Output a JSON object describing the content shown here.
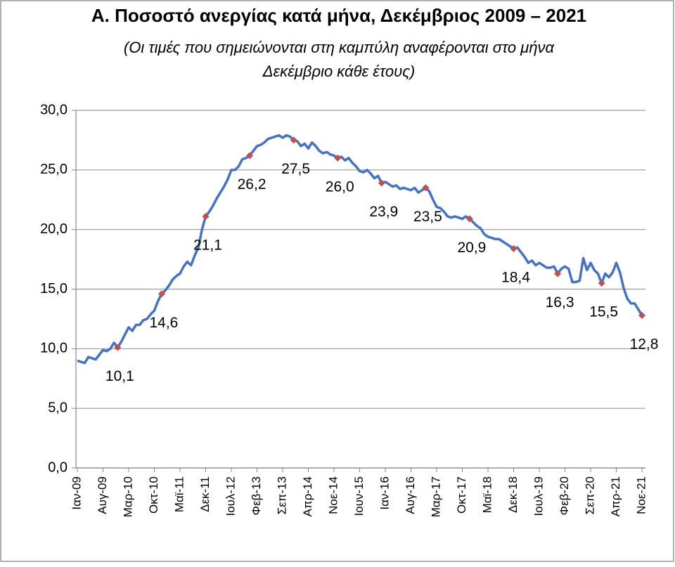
{
  "chart_data": {
    "type": "line",
    "title": "Α. Ποσοστό ανεργίας κατά μήνα, Δεκέμβριος 2009 – 2021",
    "subtitle": [
      "(Οι τιμές που σημειώνονται στη καμπύλη αναφέρονται στο μήνα",
      "Δεκέμβριο κάθε έτους)"
    ],
    "categories": [
      "Ιαν-09",
      null,
      null,
      null,
      null,
      null,
      null,
      "Αυγ-09",
      null,
      null,
      null,
      null,
      null,
      null,
      "Μαρ-10",
      null,
      null,
      null,
      null,
      null,
      null,
      "Οκτ-10",
      null,
      null,
      null,
      null,
      null,
      null,
      "Μαϊ-11",
      null,
      null,
      null,
      null,
      null,
      null,
      "Δεκ-11",
      null,
      null,
      null,
      null,
      null,
      null,
      "Ιουλ-12",
      null,
      null,
      null,
      null,
      null,
      null,
      "Φεβ-13",
      null,
      null,
      null,
      null,
      null,
      null,
      "Σεπ-13",
      null,
      null,
      null,
      null,
      null,
      null,
      "Απρ-14",
      null,
      null,
      null,
      null,
      null,
      null,
      "Νοε-14",
      null,
      null,
      null,
      null,
      null,
      null,
      "Ιουν-15",
      null,
      null,
      null,
      null,
      null,
      null,
      "Ιαν-16",
      null,
      null,
      null,
      null,
      null,
      null,
      "Αυγ-16",
      null,
      null,
      null,
      null,
      null,
      null,
      "Μαρ-17",
      null,
      null,
      null,
      null,
      null,
      null,
      "Οκτ-17",
      null,
      null,
      null,
      null,
      null,
      null,
      "Μαϊ-18",
      null,
      null,
      null,
      null,
      null,
      null,
      "Δεκ-18",
      null,
      null,
      null,
      null,
      null,
      null,
      "Ιουλ-19",
      null,
      null,
      null,
      null,
      null,
      null,
      "Φεβ-20",
      null,
      null,
      null,
      null,
      null,
      null,
      "Σεπ-20",
      null,
      null,
      null,
      null,
      null,
      null,
      "Απρ-21",
      null,
      null,
      null,
      null,
      null,
      null,
      "Νοε-21"
    ],
    "series": [
      {
        "color": "#4472c4",
        "marker_color": "#c0504d",
        "values": [
          9.0,
          8.9,
          8.8,
          9.3,
          9.2,
          9.1,
          9.5,
          9.9,
          9.8,
          10.0,
          10.5,
          10.1,
          10.6,
          11.2,
          11.8,
          11.5,
          12.0,
          12.0,
          12.4,
          12.5,
          12.9,
          13.2,
          14.0,
          14.6,
          14.9,
          15.3,
          15.8,
          16.1,
          16.3,
          16.9,
          17.3,
          17.0,
          17.8,
          18.5,
          20.0,
          21.1,
          21.5,
          22.0,
          22.6,
          23.1,
          23.6,
          24.2,
          25.0,
          25.0,
          25.3,
          25.9,
          26.0,
          26.2,
          26.6,
          27.0,
          27.1,
          27.3,
          27.6,
          27.7,
          27.8,
          27.9,
          27.7,
          27.9,
          27.8,
          27.5,
          27.4,
          27.0,
          27.2,
          26.8,
          27.3,
          27.0,
          26.6,
          26.4,
          26.5,
          26.3,
          26.2,
          26.0,
          26.1,
          25.8,
          26.0,
          25.6,
          25.3,
          24.9,
          24.8,
          25.0,
          24.7,
          24.3,
          24.5,
          23.9,
          24.0,
          23.8,
          23.6,
          23.7,
          23.4,
          23.5,
          23.4,
          23.3,
          23.5,
          23.1,
          23.3,
          23.5,
          23.2,
          22.5,
          21.9,
          21.8,
          21.5,
          21.1,
          21.0,
          21.1,
          21.0,
          20.9,
          21.1,
          20.9,
          20.6,
          20.3,
          20.1,
          19.6,
          19.4,
          19.3,
          19.2,
          19.2,
          19.0,
          18.8,
          18.6,
          18.4,
          18.5,
          18.1,
          17.7,
          17.2,
          17.4,
          17.0,
          17.2,
          17.0,
          16.8,
          16.8,
          16.9,
          16.3,
          16.7,
          16.9,
          16.7,
          15.6,
          15.6,
          15.7,
          17.6,
          16.6,
          17.2,
          16.6,
          16.3,
          15.5,
          16.3,
          16.0,
          16.4,
          17.2,
          16.4,
          15.1,
          14.2,
          13.8,
          13.8,
          13.3,
          12.8
        ],
        "value_labels": [
          null,
          null,
          null,
          null,
          null,
          null,
          null,
          null,
          null,
          null,
          null,
          "10,1",
          null,
          null,
          null,
          null,
          null,
          null,
          null,
          null,
          null,
          null,
          null,
          "14,6",
          null,
          null,
          null,
          null,
          null,
          null,
          null,
          null,
          null,
          null,
          null,
          "21,1",
          null,
          null,
          null,
          null,
          null,
          null,
          null,
          null,
          null,
          null,
          null,
          "26,2",
          null,
          null,
          null,
          null,
          null,
          null,
          null,
          null,
          null,
          null,
          null,
          "27,5",
          null,
          null,
          null,
          null,
          null,
          null,
          null,
          null,
          null,
          null,
          null,
          "26,0",
          null,
          null,
          null,
          null,
          null,
          null,
          null,
          null,
          null,
          null,
          null,
          "23,9",
          null,
          null,
          null,
          null,
          null,
          null,
          null,
          null,
          null,
          null,
          null,
          "23,5",
          null,
          null,
          null,
          null,
          null,
          null,
          null,
          null,
          null,
          null,
          null,
          "20,9",
          null,
          null,
          null,
          null,
          null,
          null,
          null,
          null,
          null,
          null,
          null,
          "18,4",
          null,
          null,
          null,
          null,
          null,
          null,
          null,
          null,
          null,
          null,
          null,
          "16,3",
          null,
          null,
          null,
          null,
          null,
          null,
          null,
          null,
          null,
          null,
          null,
          "15,5",
          null,
          null,
          null,
          null,
          null,
          null,
          null,
          null,
          null,
          null,
          "12,8"
        ]
      }
    ],
    "ylim": [
      0,
      30
    ],
    "yticks": [
      {
        "value": 0,
        "label": "0,0"
      },
      {
        "value": 5,
        "label": "5,0"
      },
      {
        "value": 10,
        "label": "10,0"
      },
      {
        "value": 15,
        "label": "15,0"
      },
      {
        "value": 20,
        "label": "20,0"
      },
      {
        "value": 25,
        "label": "25,0"
      },
      {
        "value": 30,
        "label": "30,0"
      }
    ],
    "grid": true
  }
}
